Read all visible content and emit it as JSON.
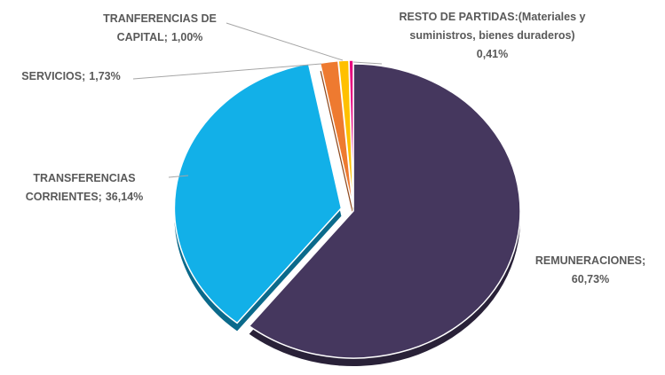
{
  "chart_data": {
    "type": "pie",
    "categories": [
      "REMUNERACIONES;",
      "TRANSFERENCIAS CORRIENTES;",
      "SERVICIOS;",
      "TRANFERENCIAS DE CAPITAL;",
      "RESTO DE PARTIDAS:(Materiales y suministros, bienes duraderos)"
    ],
    "values": [
      60.73,
      36.14,
      1.73,
      1.0,
      0.41
    ],
    "value_labels": [
      "60,73%",
      "36,14%",
      "1,73%",
      "1,00%",
      "0,41%"
    ],
    "colors": [
      "#45375e",
      "#12b0e8",
      "#ee7a30",
      "#ffc000",
      "#e6007e"
    ]
  }
}
